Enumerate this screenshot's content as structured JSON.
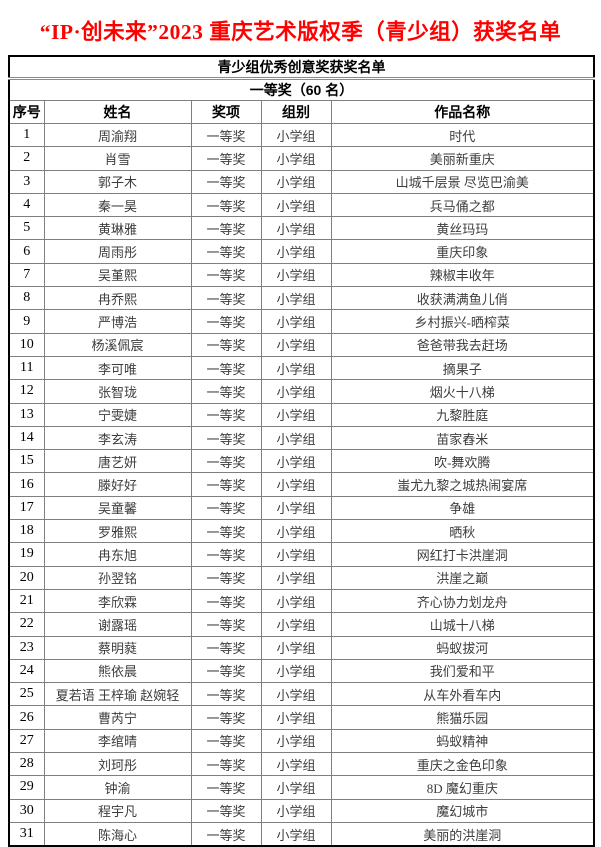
{
  "page": {
    "title": "“IP·创未来”2023 重庆艺术版权季（青少组）获奖名单",
    "title_color": "#ff0000"
  },
  "table": {
    "subtitle": "青少组优秀创意奖获奖名单",
    "award_header": "一等奖（60 名）",
    "columns": [
      "序号",
      "姓名",
      "奖项",
      "组别",
      "作品名称"
    ],
    "rows": [
      {
        "no": "1",
        "name": "周渝翔",
        "award": "一等奖",
        "group": "小学组",
        "work": "时代"
      },
      {
        "no": "2",
        "name": "肖雪",
        "award": "一等奖",
        "group": "小学组",
        "work": "美丽新重庆"
      },
      {
        "no": "3",
        "name": "郭子木",
        "award": "一等奖",
        "group": "小学组",
        "work": "山城千层景 尽览巴渝美"
      },
      {
        "no": "4",
        "name": "秦一昊",
        "award": "一等奖",
        "group": "小学组",
        "work": "兵马俑之都"
      },
      {
        "no": "5",
        "name": "黄琳雅",
        "award": "一等奖",
        "group": "小学组",
        "work": "黄丝玛玛"
      },
      {
        "no": "6",
        "name": "周雨彤",
        "award": "一等奖",
        "group": "小学组",
        "work": "重庆印象"
      },
      {
        "no": "7",
        "name": "吴堇熙",
        "award": "一等奖",
        "group": "小学组",
        "work": "辣椒丰收年"
      },
      {
        "no": "8",
        "name": "冉乔熙",
        "award": "一等奖",
        "group": "小学组",
        "work": "收获满满鱼儿俏"
      },
      {
        "no": "9",
        "name": "严博浩",
        "award": "一等奖",
        "group": "小学组",
        "work": "乡村振兴-晒榨菜"
      },
      {
        "no": "10",
        "name": "杨溪佩宸",
        "award": "一等奖",
        "group": "小学组",
        "work": "爸爸带我去赶场"
      },
      {
        "no": "11",
        "name": "李可唯",
        "award": "一等奖",
        "group": "小学组",
        "work": "摘果子"
      },
      {
        "no": "12",
        "name": "张智珑",
        "award": "一等奖",
        "group": "小学组",
        "work": "烟火十八梯"
      },
      {
        "no": "13",
        "name": "宁雯婕",
        "award": "一等奖",
        "group": "小学组",
        "work": "九黎胜庭"
      },
      {
        "no": "14",
        "name": "李玄涛",
        "award": "一等奖",
        "group": "小学组",
        "work": "苗家舂米"
      },
      {
        "no": "15",
        "name": "唐艺妍",
        "award": "一等奖",
        "group": "小学组",
        "work": "吹-舞欢腾"
      },
      {
        "no": "16",
        "name": "滕好好",
        "award": "一等奖",
        "group": "小学组",
        "work": "蚩尤九黎之城热闹宴席"
      },
      {
        "no": "17",
        "name": "吴童馨",
        "award": "一等奖",
        "group": "小学组",
        "work": "争雄"
      },
      {
        "no": "18",
        "name": "罗雅熙",
        "award": "一等奖",
        "group": "小学组",
        "work": "晒秋"
      },
      {
        "no": "19",
        "name": "冉东旭",
        "award": "一等奖",
        "group": "小学组",
        "work": "网红打卡洪崖洞"
      },
      {
        "no": "20",
        "name": "孙翌铭",
        "award": "一等奖",
        "group": "小学组",
        "work": "洪崖之巅"
      },
      {
        "no": "21",
        "name": "李欣霖",
        "award": "一等奖",
        "group": "小学组",
        "work": "齐心协力划龙舟"
      },
      {
        "no": "22",
        "name": "谢露瑶",
        "award": "一等奖",
        "group": "小学组",
        "work": "山城十八梯"
      },
      {
        "no": "23",
        "name": "蔡明蕤",
        "award": "一等奖",
        "group": "小学组",
        "work": "蚂蚁拔河"
      },
      {
        "no": "24",
        "name": "熊依晨",
        "award": "一等奖",
        "group": "小学组",
        "work": "我们爱和平"
      },
      {
        "no": "25",
        "name": "夏若语 王梓瑜 赵婉轻",
        "award": "一等奖",
        "group": "小学组",
        "work": "从车外看车内"
      },
      {
        "no": "26",
        "name": "曹芮宁",
        "award": "一等奖",
        "group": "小学组",
        "work": "熊猫乐园"
      },
      {
        "no": "27",
        "name": "李绾晴",
        "award": "一等奖",
        "group": "小学组",
        "work": "蚂蚁精神"
      },
      {
        "no": "28",
        "name": "刘珂彤",
        "award": "一等奖",
        "group": "小学组",
        "work": "重庆之金色印象"
      },
      {
        "no": "29",
        "name": "钟渝",
        "award": "一等奖",
        "group": "小学组",
        "work": "8D 魔幻重庆"
      },
      {
        "no": "30",
        "name": "程宇凡",
        "award": "一等奖",
        "group": "小学组",
        "work": "魔幻城市"
      },
      {
        "no": "31",
        "name": "陈海心",
        "award": "一等奖",
        "group": "小学组",
        "work": "美丽的洪崖洞"
      }
    ]
  }
}
